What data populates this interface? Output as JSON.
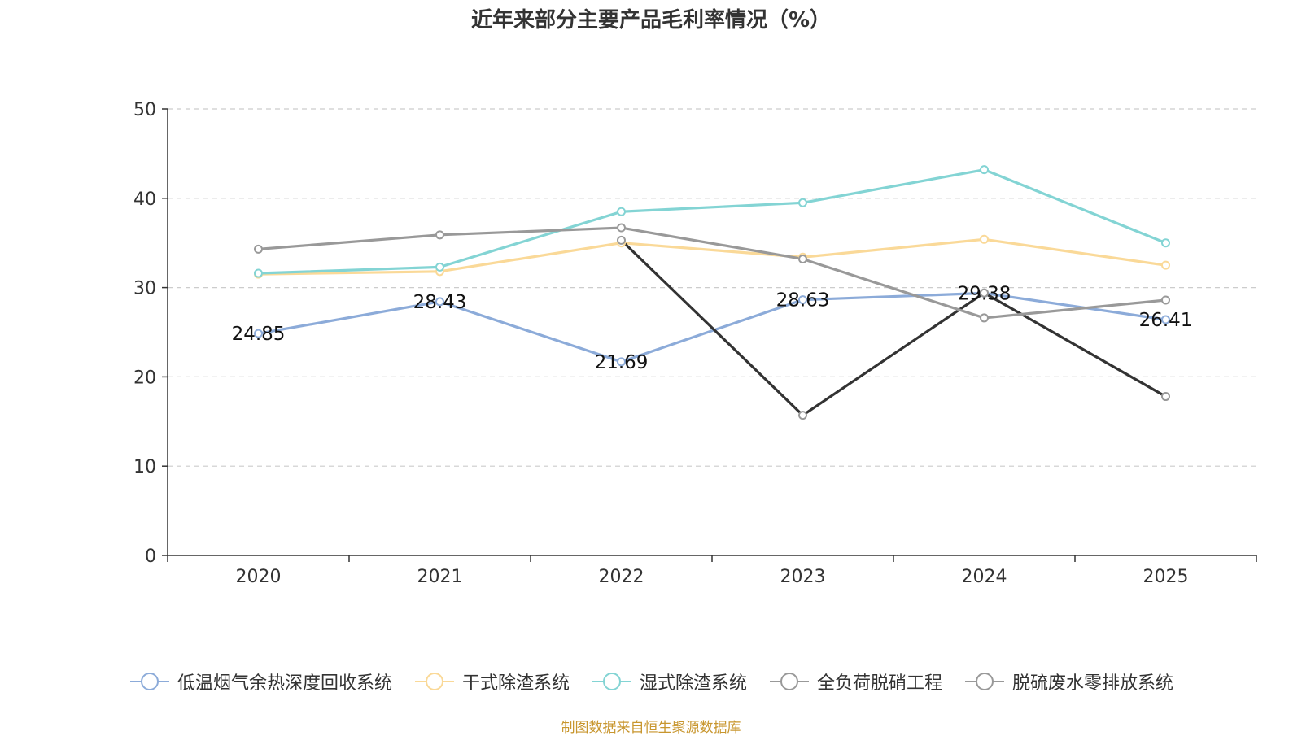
{
  "chart_data": {
    "type": "line",
    "title": "近年来部分主要产品毛利率情况（%）",
    "categories": [
      "2020",
      "2021",
      "2022",
      "2023",
      "2024",
      "2025"
    ],
    "ylim": [
      0,
      50
    ],
    "yticks": [
      0,
      10,
      20,
      30,
      40,
      50
    ],
    "grid": true,
    "legend_position": "bottom",
    "series": [
      {
        "name": "低温烟气余热深度回收系统",
        "color": "#8cabd9",
        "values": [
          24.85,
          28.43,
          21.69,
          28.63,
          29.38,
          26.41
        ],
        "labels": [
          "24.85",
          "28.43",
          "21.69",
          "28.63",
          "29.38",
          "26.41"
        ]
      },
      {
        "name": "干式除渣系统",
        "color": "#fad998",
        "values": [
          31.5,
          31.8,
          35.0,
          33.4,
          35.4,
          32.5
        ]
      },
      {
        "name": "湿式除渣系统",
        "color": "#83d4d4",
        "values": [
          31.6,
          32.3,
          38.5,
          39.5,
          43.2,
          35.0
        ]
      },
      {
        "name": "全负荷脱硝工程",
        "color": "#333333",
        "values": [
          null,
          null,
          35.3,
          15.7,
          29.4,
          17.8
        ]
      },
      {
        "name": "脱硫废水零排放系统",
        "color": "#999999",
        "values": [
          34.3,
          35.9,
          36.7,
          33.2,
          26.6,
          28.6
        ]
      }
    ]
  },
  "source_note": "制图数据来自恒生聚源数据库"
}
